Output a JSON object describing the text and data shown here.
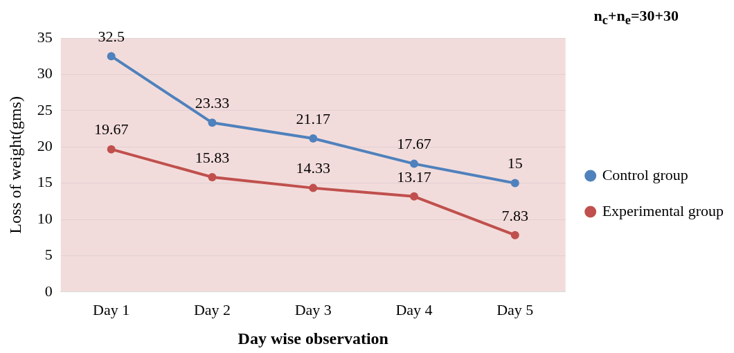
{
  "chart_data": {
    "type": "line",
    "xlabel": "Day wise observation",
    "ylabel": "Loss of weight(gms)",
    "annotations": [
      "n$_{c}$+n$_{e}$=30+30"
    ],
    "categories": [
      "Day 1",
      "Day 2",
      "Day 3",
      "Day 4",
      "Day 5"
    ],
    "series": [
      {
        "name": "Control group",
        "color": "#4f81bd",
        "values": [
          32.5,
          23.33,
          21.17,
          17.67,
          15
        ]
      },
      {
        "name": "Experimental group",
        "color": "#c0504d",
        "values": [
          19.67,
          15.83,
          14.33,
          13.17,
          7.83
        ]
      }
    ],
    "ylim": [
      0,
      35
    ],
    "yticks": [
      0,
      5,
      10,
      15,
      20,
      25,
      30,
      35
    ],
    "grid": "y",
    "legend": "right",
    "marker": "circle",
    "line_style": "solid",
    "data_labels": true
  }
}
